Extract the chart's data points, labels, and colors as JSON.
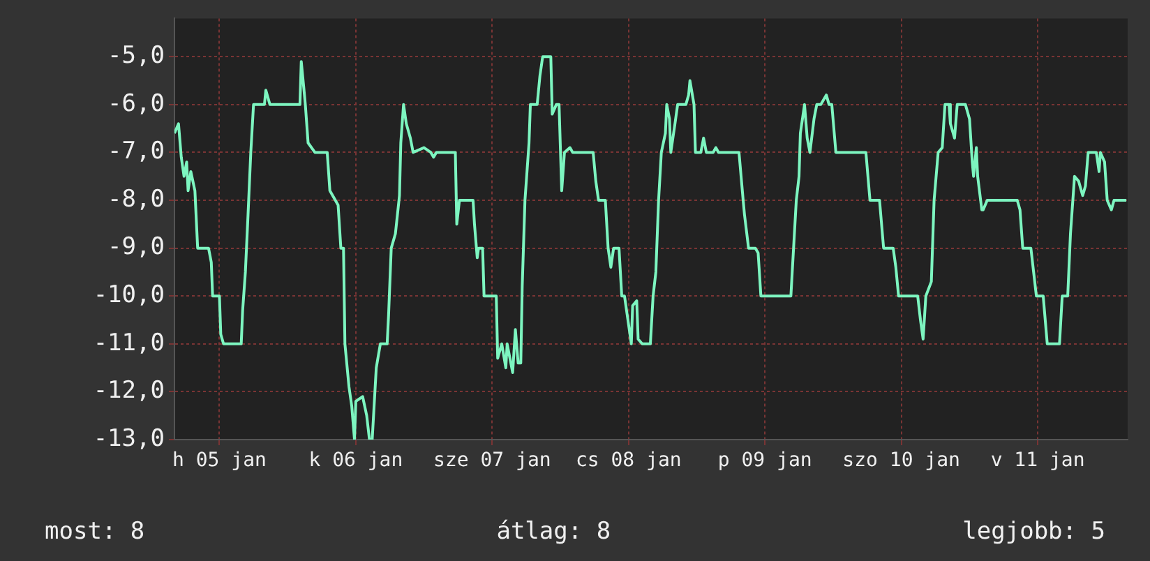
{
  "chart_data": {
    "type": "line",
    "x": [
      "--01-04T16:05",
      "--01-04T16:48",
      "--01-04T17:17",
      "--01-04T17:46",
      "--01-04T18:14",
      "--01-04T18:29",
      "--01-04T18:58",
      "--01-04T19:41",
      "--01-04T20:10",
      "--01-04T22:05",
      "--01-04T22:34",
      "--01-04T22:48",
      "--01-05T00:00",
      "--01-05T00:14",
      "--01-05T00:43",
      "--01-05T03:50",
      "--01-05T04:05",
      "--01-05T04:34",
      "--01-05T05:02",
      "--01-05T05:31",
      "--01-05T06:00",
      "--01-05T07:55",
      "--01-05T08:10",
      "--01-05T08:53",
      "--01-05T14:10",
      "--01-05T14:24",
      "--01-05T14:53",
      "--01-05T15:07",
      "--01-05T15:36",
      "--01-05T16:48",
      "--01-05T18:58",
      "--01-05T19:26",
      "--01-05T20:24",
      "--01-05T20:53",
      "--01-05T21:22",
      "--01-05T21:50",
      "--01-05T22:05",
      "--01-05T22:48",
      "--01-05T23:17",
      "--01-05T23:46",
      "--01-06T00:00",
      "--01-06T01:12",
      "--01-06T01:55",
      "--01-06T02:24",
      "--01-06T02:53",
      "--01-06T03:36",
      "--01-06T04:19",
      "--01-06T05:31",
      "--01-06T05:46",
      "--01-06T06:14",
      "--01-06T06:58",
      "--01-06T07:41",
      "--01-06T07:55",
      "--01-06T08:24",
      "--01-06T08:53",
      "--01-06T09:36",
      "--01-06T10:05",
      "--01-06T12:00",
      "--01-06T13:12",
      "--01-06T13:41",
      "--01-06T14:10",
      "--01-06T17:31",
      "--01-06T17:46",
      "--01-06T18:14",
      "--01-06T20:38",
      "--01-06T20:53",
      "--01-06T21:22",
      "--01-06T21:36",
      "--01-06T22:19",
      "--01-06T22:34",
      "--01-07T00:43",
      "--01-07T00:58",
      "--01-07T01:41",
      "--01-07T02:24",
      "--01-07T02:38",
      "--01-07T03:36",
      "--01-07T04:05",
      "--01-07T04:34",
      "--01-07T05:02",
      "--01-07T05:17",
      "--01-07T05:46",
      "--01-07T06:29",
      "--01-07T06:43",
      "--01-07T07:55",
      "--01-07T08:24",
      "--01-07T08:53",
      "--01-07T10:19",
      "--01-07T10:34",
      "--01-07T11:17",
      "--01-07T11:46",
      "--01-07T12:14",
      "--01-07T12:43",
      "--01-07T13:41",
      "--01-07T14:10",
      "--01-07T17:46",
      "--01-07T18:14",
      "--01-07T18:43",
      "--01-07T19:55",
      "--01-07T20:24",
      "--01-07T20:53",
      "--01-07T21:22",
      "--01-07T22:19",
      "--01-07T22:48",
      "--01-07T23:17",
      "--01-07T23:46",
      "--01-08T00:29",
      "--01-08T00:43",
      "--01-08T01:26",
      "--01-08T01:41",
      "--01-08T02:24",
      "--01-08T03:50",
      "--01-08T04:19",
      "--01-08T04:48",
      "--01-08T05:17",
      "--01-08T05:46",
      "--01-08T06:29",
      "--01-08T06:43",
      "--01-08T07:12",
      "--01-08T07:26",
      "--01-08T08:10",
      "--01-08T08:38",
      "--01-08T10:05",
      "--01-08T10:34",
      "--01-08T10:48",
      "--01-08T11:31",
      "--01-08T11:46",
      "--01-08T12:43",
      "--01-08T13:12",
      "--01-08T13:41",
      "--01-08T14:53",
      "--01-08T15:22",
      "--01-08T15:50",
      "--01-08T17:02",
      "--01-08T18:43",
      "--01-08T19:26",
      "--01-08T20:10",
      "--01-08T20:24",
      "--01-08T21:07",
      "--01-08T22:19",
      "--01-08T22:48",
      "--01-08T23:17",
      "--01-09T04:34",
      "--01-09T04:48",
      "--01-09T05:31",
      "--01-09T06:00",
      "--01-09T06:14",
      "--01-09T06:58",
      "--01-09T07:26",
      "--01-09T07:55",
      "--01-09T08:38",
      "--01-09T09:07",
      "--01-09T09:50",
      "--01-09T10:48",
      "--01-09T11:17",
      "--01-09T11:46",
      "--01-09T12:29",
      "--01-09T17:46",
      "--01-09T18:29",
      "--01-09T20:10",
      "--01-09T20:53",
      "--01-09T22:34",
      "--01-09T23:02",
      "--01-09T23:31",
      "--01-10T02:53",
      "--01-10T03:22",
      "--01-10T03:50",
      "--01-10T04:19",
      "--01-10T05:17",
      "--01-10T05:46",
      "--01-10T06:29",
      "--01-10T07:12",
      "--01-10T07:41",
      "--01-10T08:24",
      "--01-10T08:38",
      "--01-10T09:22",
      "--01-10T09:50",
      "--01-10T11:17",
      "--01-10T12:00",
      "--01-10T12:29",
      "--01-10T12:43",
      "--01-10T13:12",
      "--01-10T13:26",
      "--01-10T14:10",
      "--01-10T14:24",
      "--01-10T15:07",
      "--01-10T20:24",
      "--01-10T20:53",
      "--01-10T21:22",
      "--01-10T22:48",
      "--01-10T23:17",
      "--01-10T23:46",
      "--01-11T00:58",
      "--01-11T01:41",
      "--01-11T03:50",
      "--01-11T04:19",
      "--01-11T05:17",
      "--01-11T05:46",
      "--01-11T06:29",
      "--01-11T07:12",
      "--01-11T07:55",
      "--01-11T08:24",
      "--01-11T08:53",
      "--01-11T10:19",
      "--01-11T10:48",
      "--01-11T11:02",
      "--01-11T11:46",
      "--01-11T12:14",
      "--01-11T12:58",
      "--01-11T13:26",
      "--01-11T15:36"
    ],
    "series": [
      {
        "color": "#7df5c0",
        "values": [
          -6.6,
          -6.4,
          -7.1,
          -7.5,
          -7.2,
          -7.8,
          -7.4,
          -7.8,
          -9.0,
          -9.0,
          -9.3,
          -10.0,
          -10.0,
          -10.8,
          -11.0,
          -11.0,
          -10.3,
          -9.5,
          -8.3,
          -7.0,
          -6.0,
          -6.0,
          -5.7,
          -6.0,
          -6.0,
          -5.1,
          -5.7,
          -6.0,
          -6.8,
          -7.0,
          -7.0,
          -7.8,
          -8.0,
          -8.1,
          -9.0,
          -9.0,
          -11.0,
          -11.9,
          -12.3,
          -13.0,
          -12.2,
          -12.1,
          -12.5,
          -13.0,
          -13.0,
          -11.5,
          -11.0,
          -11.0,
          -10.4,
          -9.0,
          -8.7,
          -7.9,
          -6.8,
          -6.0,
          -6.4,
          -6.7,
          -7.0,
          -6.9,
          -7.0,
          -7.1,
          -7.0,
          -7.0,
          -8.5,
          -8.0,
          -8.0,
          -8.5,
          -9.2,
          -9.0,
          -9.0,
          -10.0,
          -10.0,
          -11.3,
          -11.0,
          -11.5,
          -11.0,
          -11.6,
          -10.7,
          -11.4,
          -11.4,
          -9.8,
          -8.0,
          -6.8,
          -6.0,
          -6.0,
          -5.4,
          -5.0,
          -5.0,
          -6.2,
          -6.0,
          -6.0,
          -7.8,
          -7.0,
          -6.9,
          -7.0,
          -7.0,
          -7.6,
          -8.0,
          -8.0,
          -9.0,
          -9.4,
          -9.0,
          -9.0,
          -10.0,
          -10.0,
          -10.4,
          -11.0,
          -10.2,
          -10.1,
          -10.9,
          -11.0,
          -11.0,
          -10.0,
          -9.5,
          -8.0,
          -7.0,
          -6.6,
          -6.0,
          -6.3,
          -7.0,
          -6.4,
          -6.0,
          -6.0,
          -5.8,
          -5.5,
          -6.0,
          -7.0,
          -7.0,
          -6.7,
          -7.0,
          -7.0,
          -6.9,
          -7.0,
          -7.0,
          -7.0,
          -7.0,
          -8.0,
          -8.3,
          -9.0,
          -9.0,
          -9.1,
          -10.0,
          -10.0,
          -9.5,
          -8.0,
          -7.5,
          -6.6,
          -6.0,
          -6.7,
          -7.0,
          -6.3,
          -6.0,
          -6.0,
          -5.8,
          -6.0,
          -6.0,
          -7.0,
          -7.0,
          -8.0,
          -8.0,
          -9.0,
          -9.0,
          -9.4,
          -10.0,
          -10.0,
          -10.5,
          -10.9,
          -10.0,
          -9.7,
          -8.0,
          -7.0,
          -6.9,
          -6.0,
          -6.0,
          -6.4,
          -6.7,
          -6.0,
          -6.0,
          -6.3,
          -7.2,
          -7.5,
          -6.9,
          -7.5,
          -8.2,
          -8.2,
          -8.0,
          -8.0,
          -8.2,
          -9.0,
          -9.0,
          -9.5,
          -10.0,
          -10.0,
          -11.0,
          -11.0,
          -10.0,
          -10.0,
          -8.7,
          -7.5,
          -7.6,
          -7.9,
          -7.7,
          -7.0,
          -7.0,
          -7.4,
          -7.0,
          -7.2,
          -8.0,
          -8.2,
          -8.0,
          -8.0
        ]
      }
    ],
    "xlim": [
      "--01-04T16:05",
      "--01-11T15:50"
    ],
    "xticks": [
      {
        "value": "--01-05",
        "label": "h 05 jan"
      },
      {
        "value": "--01-06",
        "label": "k 06 jan"
      },
      {
        "value": "--01-07",
        "label": "sze 07 jan"
      },
      {
        "value": "--01-08",
        "label": "cs 08 jan"
      },
      {
        "value": "--01-09",
        "label": "p 09 jan"
      },
      {
        "value": "--01-10",
        "label": "szo 10 jan"
      },
      {
        "value": "--01-11",
        "label": "v 11 jan"
      }
    ],
    "ylim": [
      -13,
      -4.2
    ],
    "yticks": [
      {
        "value": -13,
        "label": "-13,0"
      },
      {
        "value": -12,
        "label": "-12,0"
      },
      {
        "value": -11,
        "label": "-11,0"
      },
      {
        "value": -10,
        "label": "-10,0"
      },
      {
        "value": -9,
        "label": "-9,0"
      },
      {
        "value": -8,
        "label": "-8,0"
      },
      {
        "value": -7,
        "label": "-7,0"
      },
      {
        "value": -6,
        "label": "-6,0"
      },
      {
        "value": -5,
        "label": "-5,0"
      }
    ],
    "grid": true,
    "legend": false,
    "marker": "none",
    "line_style": "solid",
    "annotations": [
      "most: 8",
      "átlag: 8",
      "legjobb: 5"
    ]
  }
}
